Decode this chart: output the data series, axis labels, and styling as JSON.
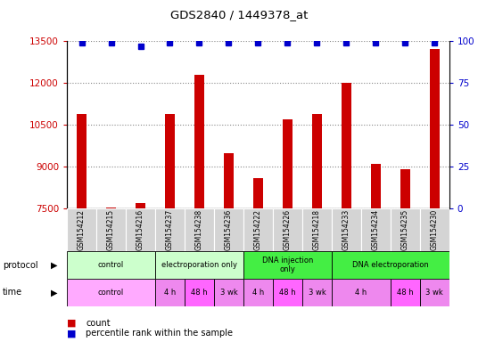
{
  "title": "GDS2840 / 1449378_at",
  "samples": [
    "GSM154212",
    "GSM154215",
    "GSM154216",
    "GSM154237",
    "GSM154238",
    "GSM154236",
    "GSM154222",
    "GSM154226",
    "GSM154218",
    "GSM154233",
    "GSM154234",
    "GSM154235",
    "GSM154230"
  ],
  "counts": [
    10900,
    7550,
    7700,
    10900,
    12300,
    9500,
    8600,
    10700,
    10900,
    12000,
    9100,
    8900,
    13200
  ],
  "percentile_ranks": [
    99,
    99,
    97,
    99,
    99,
    99,
    99,
    99,
    99,
    99,
    99,
    99,
    99
  ],
  "ylim_left": [
    7500,
    13500
  ],
  "ylim_right": [
    0,
    100
  ],
  "yticks_left": [
    7500,
    9000,
    10500,
    12000,
    13500
  ],
  "yticks_right": [
    0,
    25,
    50,
    75,
    100
  ],
  "bar_color": "#cc0000",
  "dot_color": "#0000cc",
  "bar_base": 7500,
  "protocol_groups": [
    {
      "label": "control",
      "start": 0,
      "end": 3,
      "color": "#ccffcc"
    },
    {
      "label": "electroporation only",
      "start": 3,
      "end": 6,
      "color": "#ccffcc"
    },
    {
      "label": "DNA injection\nonly",
      "start": 6,
      "end": 9,
      "color": "#44ee44"
    },
    {
      "label": "DNA electroporation",
      "start": 9,
      "end": 13,
      "color": "#44ee44"
    }
  ],
  "time_groups": [
    {
      "label": "control",
      "start": 0,
      "end": 3,
      "color": "#ffaaff"
    },
    {
      "label": "4 h",
      "start": 3,
      "end": 4,
      "color": "#ee88ee"
    },
    {
      "label": "48 h",
      "start": 4,
      "end": 5,
      "color": "#ff66ff"
    },
    {
      "label": "3 wk",
      "start": 5,
      "end": 6,
      "color": "#ee88ee"
    },
    {
      "label": "4 h",
      "start": 6,
      "end": 7,
      "color": "#ee88ee"
    },
    {
      "label": "48 h",
      "start": 7,
      "end": 8,
      "color": "#ff66ff"
    },
    {
      "label": "3 wk",
      "start": 8,
      "end": 9,
      "color": "#ee88ee"
    },
    {
      "label": "4 h",
      "start": 9,
      "end": 11,
      "color": "#ee88ee"
    },
    {
      "label": "48 h",
      "start": 11,
      "end": 12,
      "color": "#ff66ff"
    },
    {
      "label": "3 wk",
      "start": 12,
      "end": 13,
      "color": "#ee88ee"
    }
  ],
  "legend_items": [
    {
      "label": "count",
      "color": "#cc0000"
    },
    {
      "label": "percentile rank within the sample",
      "color": "#0000cc"
    }
  ],
  "bg_color": "#ffffff",
  "grid_color": "#888888",
  "label_color_left": "#cc0000",
  "label_color_right": "#0000cc"
}
